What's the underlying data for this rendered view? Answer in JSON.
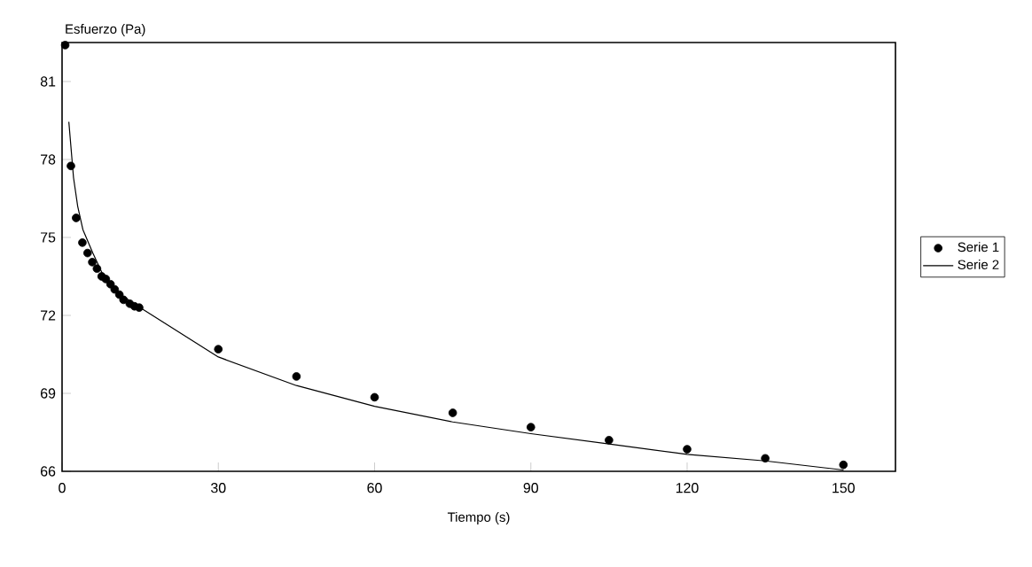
{
  "chart_data": {
    "type": "line",
    "xlabel": "Tiempo (s)",
    "ylabel": "Esfuerzo (Pa)",
    "xlim": [
      0,
      160
    ],
    "xticks": [
      0,
      30,
      60,
      90,
      120,
      150
    ],
    "ylim": [
      66,
      82.5
    ],
    "yticks": [
      66,
      69,
      72,
      75,
      78,
      81
    ],
    "grid": false,
    "legend": "right",
    "series": [
      {
        "name": "Serie 1",
        "type": "scatter",
        "marker": "circle",
        "color": "#000000",
        "x": [
          0.6,
          1.7,
          2.7,
          3.9,
          4.9,
          5.8,
          6.7,
          7.6,
          8.4,
          9.3,
          10.1,
          11.0,
          11.8,
          13.0,
          13.9,
          14.8,
          30,
          45,
          60,
          75,
          90,
          105,
          120,
          135,
          150
        ],
        "values": [
          82.4,
          77.75,
          75.75,
          74.8,
          74.4,
          74.05,
          73.8,
          73.5,
          73.4,
          73.2,
          73.0,
          72.8,
          72.6,
          72.45,
          72.35,
          72.3,
          70.7,
          69.65,
          68.85,
          68.25,
          67.7,
          67.2,
          66.85,
          66.5,
          66.25
        ]
      },
      {
        "name": "Serie 2",
        "marker": "none",
        "line_style": "solid",
        "color": "#000000",
        "x": [
          1.3,
          2.2,
          3,
          4,
          5.9,
          8,
          10,
          12,
          15,
          30,
          45,
          60,
          75,
          90,
          105,
          120,
          135,
          150
        ],
        "values": [
          79.45,
          77.3,
          76.2,
          75.3,
          74.4,
          73.5,
          73.0,
          72.7,
          72.3,
          70.4,
          69.3,
          68.5,
          67.9,
          67.45,
          67.05,
          66.65,
          66.4,
          66.05
        ]
      }
    ]
  }
}
